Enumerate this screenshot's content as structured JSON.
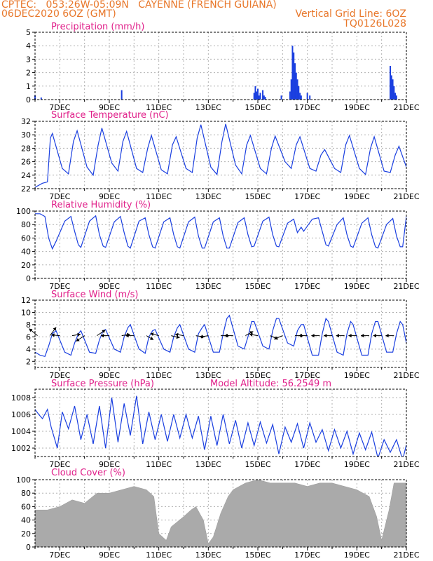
{
  "header": {
    "line1": "CPTEC:   053:26W-05:09N   CAYENNE (FRENCH GUIANA)",
    "run": "06DEC2020 6OZ (GMT)",
    "grid_note": "Vertical Grid Line: 6OZ",
    "code": "TQ0126L028"
  },
  "colors": {
    "header": "#e8772a",
    "panel_title": "#e0208a",
    "series": "#1a3fe0",
    "cloud": "#aaaaaa",
    "grid": "#b0b0b0"
  },
  "chart_data": [
    {
      "type": "bar",
      "title": "Precipitation (mm/h)",
      "ylim": [
        0,
        5
      ],
      "yticks": [
        0,
        1,
        2,
        3,
        4,
        5
      ],
      "xlim_days": [
        6.0,
        21.0
      ],
      "x_tick_labels": [
        "7DEC",
        "9DEC",
        "11DEC",
        "13DEC",
        "15DEC",
        "17DEC",
        "19DEC",
        "21DEC"
      ],
      "grid": true,
      "events": [
        {
          "day": 6.0,
          "value": 0.3
        },
        {
          "day": 6.25,
          "value": 0.15
        },
        {
          "day": 9.5,
          "value": 0.7
        },
        {
          "day": 14.85,
          "value": 0.5
        },
        {
          "day": 14.9,
          "value": 1.0
        },
        {
          "day": 14.95,
          "value": 0.6
        },
        {
          "day": 15.0,
          "value": 0.8
        },
        {
          "day": 15.05,
          "value": 0.3
        },
        {
          "day": 15.1,
          "value": 0.5
        },
        {
          "day": 15.2,
          "value": 0.7
        },
        {
          "day": 15.25,
          "value": 0.3
        },
        {
          "day": 15.3,
          "value": 0.2
        },
        {
          "day": 15.95,
          "value": 0.3
        },
        {
          "day": 16.3,
          "value": 0.6
        },
        {
          "day": 16.35,
          "value": 1.5
        },
        {
          "day": 16.4,
          "value": 4.0
        },
        {
          "day": 16.45,
          "value": 3.5
        },
        {
          "day": 16.5,
          "value": 2.7
        },
        {
          "day": 16.55,
          "value": 2.0
        },
        {
          "day": 16.6,
          "value": 1.5
        },
        {
          "day": 16.65,
          "value": 1.0
        },
        {
          "day": 16.7,
          "value": 0.5
        },
        {
          "day": 16.75,
          "value": 0.3
        },
        {
          "day": 17.0,
          "value": 0.5
        },
        {
          "day": 17.1,
          "value": 0.3
        },
        {
          "day": 20.35,
          "value": 2.5
        },
        {
          "day": 20.4,
          "value": 1.8
        },
        {
          "day": 20.45,
          "value": 1.5
        },
        {
          "day": 20.5,
          "value": 1.0
        },
        {
          "day": 20.55,
          "value": 0.5
        },
        {
          "day": 20.6,
          "value": 0.3
        }
      ]
    },
    {
      "type": "line",
      "title": "Surface Temperature (nC)",
      "ylim": [
        22,
        32
      ],
      "yticks": [
        22,
        24,
        26,
        28,
        30,
        32
      ],
      "xlim_days": [
        6.0,
        21.0
      ],
      "x_tick_labels": [
        "7DEC",
        "9DEC",
        "11DEC",
        "13DEC",
        "15DEC",
        "17DEC",
        "19DEC",
        "21DEC"
      ],
      "grid": true,
      "x": [
        6.0,
        6.3,
        6.5,
        6.62,
        6.7,
        7.1,
        7.35,
        7.55,
        7.7,
        8.1,
        8.35,
        8.55,
        8.7,
        9.1,
        9.35,
        9.55,
        9.7,
        10.1,
        10.35,
        10.55,
        10.7,
        11.1,
        11.35,
        11.55,
        11.7,
        12.1,
        12.35,
        12.55,
        12.7,
        13.1,
        13.35,
        13.55,
        13.7,
        14.1,
        14.35,
        14.55,
        14.7,
        15.1,
        15.35,
        15.55,
        15.7,
        16.1,
        16.35,
        16.55,
        16.7,
        17.1,
        17.35,
        17.55,
        17.7,
        18.1,
        18.35,
        18.55,
        18.7,
        19.1,
        19.35,
        19.55,
        19.7,
        20.1,
        20.35,
        20.55,
        20.7,
        21.0
      ],
      "y": [
        22.2,
        22.8,
        23.0,
        29.5,
        30.2,
        25.0,
        24.2,
        29.0,
        30.6,
        25.2,
        24.0,
        28.5,
        31.0,
        25.8,
        24.6,
        29.0,
        30.5,
        25.0,
        24.4,
        28.0,
        29.9,
        24.8,
        24.2,
        28.5,
        29.7,
        25.0,
        24.4,
        29.5,
        31.5,
        25.2,
        24.1,
        29.0,
        31.6,
        25.5,
        24.2,
        28.5,
        29.9,
        25.0,
        24.2,
        28.0,
        29.8,
        26.0,
        25.0,
        28.5,
        29.7,
        25.0,
        24.6,
        27.0,
        27.8,
        25.0,
        24.4,
        28.5,
        29.9,
        25.0,
        24.1,
        28.0,
        29.7,
        24.6,
        24.4,
        27.0,
        28.3,
        25.2
      ]
    },
    {
      "type": "line",
      "title": "Relative Humidity (%)",
      "ylim": [
        0,
        100
      ],
      "yticks": [
        0,
        20,
        40,
        60,
        80,
        100
      ],
      "xlim_days": [
        6.0,
        21.0
      ],
      "x_tick_labels": [
        "7DEC",
        "9DEC",
        "11DEC",
        "13DEC",
        "15DEC",
        "17DEC",
        "19DEC",
        "21DEC"
      ],
      "grid": true,
      "x": [
        6.0,
        6.2,
        6.4,
        6.55,
        6.7,
        6.85,
        7.2,
        7.45,
        7.6,
        7.75,
        7.85,
        8.2,
        8.45,
        8.6,
        8.75,
        8.85,
        9.2,
        9.45,
        9.6,
        9.75,
        9.85,
        10.2,
        10.45,
        10.6,
        10.75,
        10.85,
        11.2,
        11.45,
        11.6,
        11.75,
        11.85,
        12.2,
        12.45,
        12.6,
        12.75,
        12.85,
        13.2,
        13.45,
        13.6,
        13.75,
        13.85,
        14.2,
        14.45,
        14.6,
        14.75,
        14.85,
        15.2,
        15.45,
        15.6,
        15.75,
        15.85,
        16.2,
        16.45,
        16.6,
        16.75,
        16.85,
        17.2,
        17.45,
        17.6,
        17.75,
        17.85,
        18.2,
        18.45,
        18.6,
        18.75,
        18.85,
        19.2,
        19.45,
        19.6,
        19.75,
        19.85,
        20.2,
        20.45,
        20.6,
        20.75,
        20.85,
        21.0
      ],
      "y": [
        96,
        96,
        92,
        60,
        44,
        55,
        85,
        92,
        70,
        50,
        46,
        85,
        93,
        65,
        48,
        46,
        84,
        92,
        68,
        48,
        45,
        85,
        90,
        65,
        47,
        45,
        84,
        90,
        65,
        47,
        45,
        84,
        91,
        63,
        45,
        45,
        84,
        90,
        63,
        45,
        45,
        83,
        90,
        65,
        47,
        48,
        85,
        91,
        65,
        48,
        47,
        82,
        88,
        68,
        76,
        70,
        88,
        90,
        70,
        50,
        48,
        80,
        90,
        65,
        48,
        46,
        82,
        90,
        65,
        47,
        45,
        80,
        89,
        63,
        47,
        47,
        92
      ]
    },
    {
      "type": "line",
      "title": "Surface Wind (m/s)",
      "ylim": [
        1,
        12
      ],
      "yticks": [
        2,
        4,
        6,
        8,
        10,
        12
      ],
      "xlim_days": [
        6.0,
        21.0
      ],
      "x_tick_labels": [
        "7DEC",
        "9DEC",
        "11DEC",
        "13DEC",
        "15DEC",
        "17DEC",
        "19DEC",
        "21DEC"
      ],
      "grid": true,
      "x": [
        6.0,
        6.2,
        6.4,
        6.55,
        6.7,
        6.85,
        7.2,
        7.45,
        7.6,
        7.75,
        7.85,
        8.2,
        8.45,
        8.6,
        8.75,
        8.85,
        9.2,
        9.45,
        9.6,
        9.75,
        9.85,
        10.2,
        10.45,
        10.6,
        10.75,
        10.85,
        11.2,
        11.45,
        11.6,
        11.75,
        11.85,
        12.2,
        12.45,
        12.6,
        12.75,
        12.85,
        13.2,
        13.45,
        13.6,
        13.75,
        13.85,
        14.2,
        14.45,
        14.6,
        14.75,
        14.85,
        15.2,
        15.45,
        15.6,
        15.75,
        15.85,
        16.2,
        16.45,
        16.6,
        16.75,
        16.85,
        17.2,
        17.45,
        17.6,
        17.75,
        17.85,
        18.2,
        18.45,
        18.6,
        18.75,
        18.85,
        19.2,
        19.45,
        19.6,
        19.75,
        19.85,
        20.2,
        20.45,
        20.6,
        20.75,
        20.85,
        21.0
      ],
      "y": [
        3.5,
        3.0,
        2.8,
        4.5,
        6.5,
        7.0,
        3.5,
        3.0,
        5.0,
        6.5,
        7.0,
        3.5,
        3.3,
        5.5,
        7.0,
        7.2,
        4.0,
        3.5,
        6.0,
        7.5,
        8.0,
        4.0,
        3.3,
        6.0,
        7.0,
        7.2,
        4.0,
        3.5,
        6.0,
        7.5,
        8.0,
        4.0,
        3.5,
        6.5,
        7.5,
        8.0,
        3.5,
        3.5,
        6.5,
        9.0,
        9.5,
        4.5,
        4.0,
        6.0,
        8.5,
        8.5,
        4.5,
        4.0,
        7.0,
        9.0,
        9.0,
        5.0,
        4.5,
        7.0,
        8.0,
        8.0,
        3.0,
        3.0,
        6.5,
        9.0,
        8.5,
        3.5,
        3.0,
        6.5,
        8.5,
        8.0,
        3.0,
        3.0,
        6.5,
        8.5,
        8.5,
        3.5,
        3.5,
        6.5,
        8.5,
        8.0,
        5.0
      ],
      "vectors": [
        {
          "day": 6.1,
          "u": -1.2,
          "v": 1.0
        },
        {
          "day": 6.6,
          "u": 0.9,
          "v": 1.2
        },
        {
          "day": 7.0,
          "u": -1.2,
          "v": 0.1
        },
        {
          "day": 7.5,
          "u": 1.2,
          "v": 0.2
        },
        {
          "day": 8.0,
          "u": -1.2,
          "v": -0.8
        },
        {
          "day": 8.5,
          "u": 1.2,
          "v": 0.8
        },
        {
          "day": 9.0,
          "u": -1.2,
          "v": 0.0
        },
        {
          "day": 9.5,
          "u": 1.2,
          "v": 0.2
        },
        {
          "day": 10.0,
          "u": -1.2,
          "v": 0.0
        },
        {
          "day": 10.5,
          "u": 1.0,
          "v": -0.6
        },
        {
          "day": 11.0,
          "u": -1.2,
          "v": 0.3
        },
        {
          "day": 11.5,
          "u": 1.2,
          "v": -0.3
        },
        {
          "day": 12.0,
          "u": -1.2,
          "v": 0.2
        },
        {
          "day": 12.5,
          "u": 1.2,
          "v": -0.2
        },
        {
          "day": 13.0,
          "u": -1.2,
          "v": -0.2
        },
        {
          "day": 13.5,
          "u": 1.2,
          "v": 0.0
        },
        {
          "day": 14.0,
          "u": -1.2,
          "v": 0.0
        },
        {
          "day": 14.5,
          "u": 1.1,
          "v": 0.6
        },
        {
          "day": 15.0,
          "u": -1.2,
          "v": 0.2
        },
        {
          "day": 15.5,
          "u": 1.1,
          "v": -0.5
        },
        {
          "day": 16.0,
          "u": -1.2,
          "v": -0.5
        },
        {
          "day": 16.5,
          "u": 1.2,
          "v": 0.0
        },
        {
          "day": 17.0,
          "u": -1.2,
          "v": 0.0
        },
        {
          "day": 17.5,
          "u": -1.2,
          "v": 0.0
        },
        {
          "day": 18.0,
          "u": -1.2,
          "v": 0.0
        },
        {
          "day": 18.5,
          "u": -1.2,
          "v": 0.0
        },
        {
          "day": 19.0,
          "u": -1.2,
          "v": 0.0
        },
        {
          "day": 19.5,
          "u": -1.2,
          "v": 0.0
        },
        {
          "day": 20.0,
          "u": -1.2,
          "v": 0.0
        },
        {
          "day": 20.5,
          "u": -1.2,
          "v": 0.0
        }
      ]
    },
    {
      "type": "line",
      "title": "Surface Pressure (hPa)",
      "subtitle": "Model Altitude: 56.2549 m",
      "ylim": [
        1001,
        1009
      ],
      "yticks": [
        1002,
        1004,
        1006,
        1008
      ],
      "xlim_days": [
        6.0,
        21.0
      ],
      "x_tick_labels": [
        "7DEC",
        "9DEC",
        "11DEC",
        "13DEC",
        "15DEC",
        "17DEC",
        "19DEC",
        "21DEC"
      ],
      "grid": true,
      "x": [
        6.0,
        6.15,
        6.3,
        6.5,
        6.65,
        6.9,
        7.1,
        7.35,
        7.6,
        7.85,
        8.1,
        8.35,
        8.6,
        8.85,
        9.1,
        9.35,
        9.6,
        9.85,
        10.1,
        10.35,
        10.6,
        10.85,
        11.1,
        11.35,
        11.6,
        11.85,
        12.1,
        12.35,
        12.6,
        12.85,
        13.1,
        13.35,
        13.6,
        13.85,
        14.1,
        14.35,
        14.6,
        14.85,
        15.1,
        15.35,
        15.6,
        15.85,
        16.1,
        16.35,
        16.6,
        16.85,
        17.1,
        17.35,
        17.6,
        17.85,
        18.1,
        18.35,
        18.6,
        18.85,
        19.1,
        19.35,
        19.6,
        19.85,
        20.1,
        20.35,
        20.6,
        20.85,
        21.0
      ],
      "y": [
        1006.6,
        1006.0,
        1005.5,
        1006.6,
        1004.5,
        1002.0,
        1006.3,
        1004.3,
        1007.0,
        1003.0,
        1006.0,
        1002.5,
        1007.0,
        1002.0,
        1008.0,
        1002.7,
        1007.3,
        1003.5,
        1008.2,
        1002.5,
        1006.3,
        1003.0,
        1006.0,
        1002.8,
        1006.0,
        1003.2,
        1006.0,
        1003.2,
        1005.8,
        1001.8,
        1005.8,
        1002.3,
        1006.0,
        1002.5,
        1005.3,
        1002.0,
        1005.0,
        1002.3,
        1005.1,
        1002.6,
        1004.8,
        1001.3,
        1004.5,
        1002.7,
        1004.9,
        1002.0,
        1005.0,
        1002.7,
        1004.2,
        1001.7,
        1004.2,
        1002.0,
        1004.0,
        1001.3,
        1003.8,
        1001.8,
        1003.9,
        1000.8,
        1003.0,
        1001.5,
        1003.0,
        1000.6,
        1002.4
      ]
    },
    {
      "type": "bar",
      "title": "Cloud Cover (%)",
      "ylim": [
        0,
        100
      ],
      "yticks": [
        0,
        20,
        40,
        60,
        80,
        100
      ],
      "xlim_days": [
        6.0,
        21.0
      ],
      "x_tick_labels": [
        "7DEC",
        "9DEC",
        "11DEC",
        "13DEC",
        "15DEC",
        "17DEC",
        "19DEC",
        "21DEC"
      ],
      "grid": true,
      "x": [
        6.0,
        6.5,
        7.0,
        7.5,
        8.0,
        8.5,
        9.0,
        9.5,
        10.0,
        10.5,
        10.8,
        11.0,
        11.3,
        11.5,
        12.0,
        12.3,
        12.5,
        12.8,
        13.0,
        13.2,
        13.5,
        13.8,
        14.0,
        14.5,
        15.0,
        15.5,
        16.0,
        16.5,
        17.0,
        17.5,
        18.0,
        18.5,
        19.0,
        19.5,
        19.8,
        20.0,
        20.3,
        20.5,
        21.0
      ],
      "y": [
        55,
        55,
        60,
        70,
        65,
        80,
        80,
        85,
        90,
        85,
        75,
        20,
        10,
        30,
        45,
        55,
        60,
        40,
        5,
        15,
        50,
        75,
        85,
        95,
        100,
        95,
        95,
        95,
        90,
        95,
        95,
        90,
        85,
        75,
        45,
        10,
        55,
        95,
        95
      ]
    }
  ]
}
